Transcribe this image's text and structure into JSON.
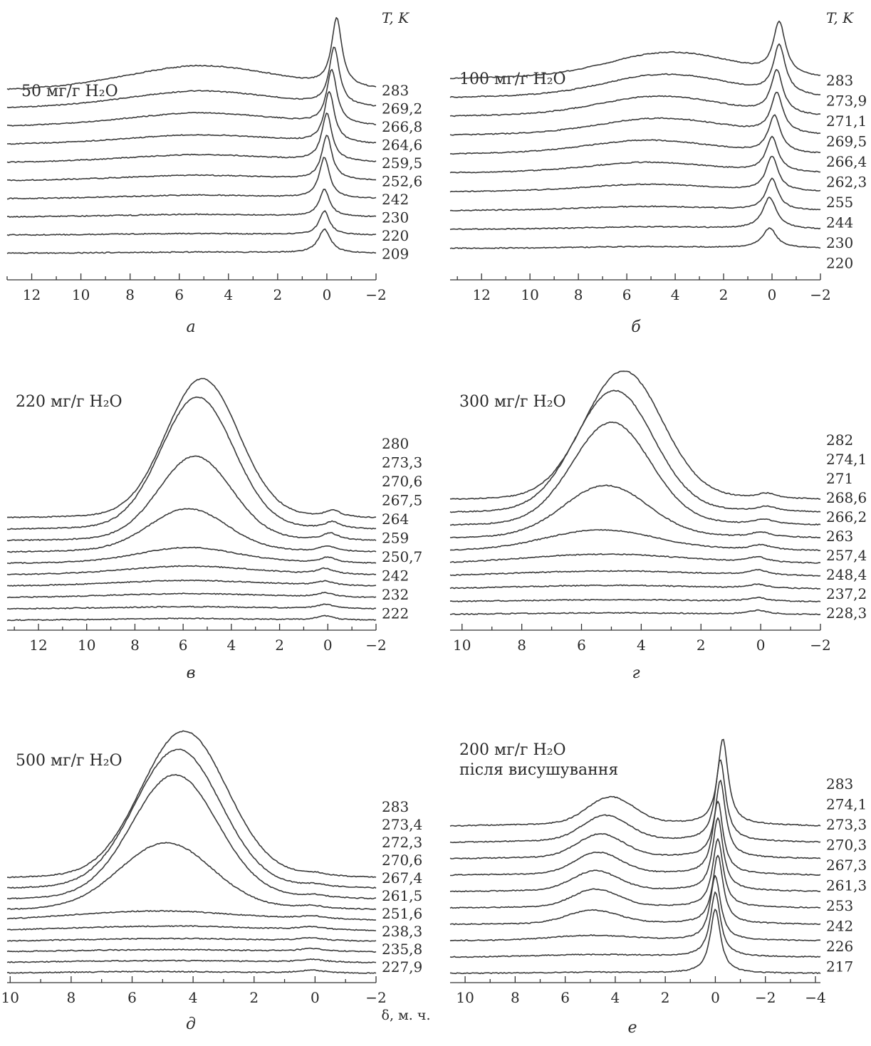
{
  "figure": {
    "x_axis_label": "δ, м. ч."
  },
  "chart_data": [
    {
      "type": "line",
      "panel_label": "а",
      "title": "50 мг/г H₂O",
      "subtitle": "",
      "legend_title": "T, K",
      "xlim": [
        13,
        -2
      ],
      "xticks": [
        "12",
        "10",
        "8",
        "6",
        "4",
        "2",
        "0",
        "−2"
      ],
      "tick_values": [
        12,
        10,
        8,
        6,
        4,
        2,
        0,
        -2
      ],
      "series": [
        {
          "name": "283",
          "broad": {
            "center": 5.0,
            "height": 0.3,
            "width": 3.0
          },
          "narrow": {
            "center": -0.4,
            "height": 1.0,
            "width": 0.25
          }
        },
        {
          "name": "269,2",
          "broad": {
            "center": 5.0,
            "height": 0.2,
            "width": 3.0
          },
          "narrow": {
            "center": -0.3,
            "height": 0.85,
            "width": 0.25
          }
        },
        {
          "name": "266,8",
          "broad": {
            "center": 5.0,
            "height": 0.15,
            "width": 3.0
          },
          "narrow": {
            "center": -0.2,
            "height": 0.8,
            "width": 0.25
          }
        },
        {
          "name": "264,6",
          "broad": {
            "center": 5.0,
            "height": 0.1,
            "width": 3.0
          },
          "narrow": {
            "center": -0.1,
            "height": 0.75,
            "width": 0.25
          }
        },
        {
          "name": "259,5",
          "broad": {
            "center": 5.0,
            "height": 0.08,
            "width": 3.0
          },
          "narrow": {
            "center": 0.0,
            "height": 0.7,
            "width": 0.25
          }
        },
        {
          "name": "252,6",
          "broad": {
            "center": 5.0,
            "height": 0.05,
            "width": 3.0
          },
          "narrow": {
            "center": 0.0,
            "height": 0.65,
            "width": 0.25
          }
        },
        {
          "name": "242",
          "broad": {
            "center": 5.0,
            "height": 0.03,
            "width": 3.0
          },
          "narrow": {
            "center": 0.1,
            "height": 0.6,
            "width": 0.25
          }
        },
        {
          "name": "230",
          "broad": {
            "center": 5.0,
            "height": 0.02,
            "width": 3.0
          },
          "narrow": {
            "center": 0.1,
            "height": 0.4,
            "width": 0.25
          }
        },
        {
          "name": "220",
          "broad": {
            "center": 5.0,
            "height": 0.01,
            "width": 3.0
          },
          "narrow": {
            "center": 0.1,
            "height": 0.35,
            "width": 0.25
          }
        },
        {
          "name": "209",
          "broad": {
            "center": 5.0,
            "height": 0.01,
            "width": 3.0
          },
          "narrow": {
            "center": 0.1,
            "height": 0.35,
            "width": 0.3
          }
        }
      ]
    },
    {
      "type": "line",
      "panel_label": "б",
      "title": "100 мг/г H₂O",
      "subtitle": "",
      "legend_title": "T, K",
      "xlim": [
        13.3,
        -2
      ],
      "xticks": [
        "12",
        "10",
        "8",
        "6",
        "4",
        "2",
        "0",
        "−2"
      ],
      "tick_values": [
        12,
        10,
        8,
        6,
        4,
        2,
        0,
        -2
      ],
      "series": [
        {
          "name": "283",
          "broad": {
            "center": 4.0,
            "height": 0.4,
            "width": 2.5
          },
          "narrow": {
            "center": -0.3,
            "height": 0.9,
            "width": 0.3
          }
        },
        {
          "name": "273,9",
          "broad": {
            "center": 4.2,
            "height": 0.35,
            "width": 2.5
          },
          "narrow": {
            "center": -0.3,
            "height": 0.85,
            "width": 0.3
          }
        },
        {
          "name": "271,1",
          "broad": {
            "center": 4.5,
            "height": 0.3,
            "width": 2.5
          },
          "narrow": {
            "center": -0.2,
            "height": 0.75,
            "width": 0.3
          }
        },
        {
          "name": "269,5",
          "broad": {
            "center": 4.5,
            "height": 0.25,
            "width": 2.5
          },
          "narrow": {
            "center": -0.2,
            "height": 0.7,
            "width": 0.3
          }
        },
        {
          "name": "266,4",
          "broad": {
            "center": 5.0,
            "height": 0.2,
            "width": 2.5
          },
          "narrow": {
            "center": -0.1,
            "height": 0.65,
            "width": 0.3
          }
        },
        {
          "name": "262,3",
          "broad": {
            "center": 5.0,
            "height": 0.15,
            "width": 2.5
          },
          "narrow": {
            "center": 0.0,
            "height": 0.6,
            "width": 0.3
          }
        },
        {
          "name": "255",
          "broad": {
            "center": 5.0,
            "height": 0.1,
            "width": 2.5
          },
          "narrow": {
            "center": 0.0,
            "height": 0.6,
            "width": 0.3
          }
        },
        {
          "name": "244",
          "broad": {
            "center": 5.0,
            "height": 0.05,
            "width": 2.5
          },
          "narrow": {
            "center": 0.0,
            "height": 0.55,
            "width": 0.3
          }
        },
        {
          "name": "230",
          "broad": {
            "center": 5.0,
            "height": 0.03,
            "width": 2.5
          },
          "narrow": {
            "center": 0.1,
            "height": 0.55,
            "width": 0.35
          }
        },
        {
          "name": "220",
          "broad": {
            "center": 5.0,
            "height": 0.02,
            "width": 2.5
          },
          "narrow": {
            "center": 0.1,
            "height": 0.35,
            "width": 0.35
          }
        }
      ]
    },
    {
      "type": "line",
      "panel_label": "в",
      "title": "220 мг/г H₂O",
      "subtitle": "",
      "legend_title": "",
      "xlim": [
        13.3,
        -2
      ],
      "xticks": [
        "12",
        "10",
        "8",
        "6",
        "4",
        "2",
        "0",
        "−2"
      ],
      "tick_values": [
        12,
        10,
        8,
        6,
        4,
        2,
        0,
        -2
      ],
      "series": [
        {
          "name": "280",
          "broad": {
            "center": 5.2,
            "height": 1.0,
            "width": 1.5
          },
          "narrow": {
            "center": -0.2,
            "height": 0.05,
            "width": 0.4
          }
        },
        {
          "name": "273,3",
          "broad": {
            "center": 5.4,
            "height": 0.95,
            "width": 1.5
          },
          "narrow": {
            "center": -0.2,
            "height": 0.05,
            "width": 0.4
          }
        },
        {
          "name": "270,6",
          "broad": {
            "center": 5.5,
            "height": 0.6,
            "width": 1.5
          },
          "narrow": {
            "center": -0.1,
            "height": 0.05,
            "width": 0.4
          }
        },
        {
          "name": "267,5",
          "broad": {
            "center": 5.8,
            "height": 0.3,
            "width": 1.6
          },
          "narrow": {
            "center": 0.0,
            "height": 0.04,
            "width": 0.4
          }
        },
        {
          "name": "264",
          "broad": {
            "center": 5.8,
            "height": 0.1,
            "width": 2.0
          },
          "narrow": {
            "center": 0.0,
            "height": 0.04,
            "width": 0.4
          }
        },
        {
          "name": "259",
          "broad": {
            "center": 5.8,
            "height": 0.05,
            "width": 2.5
          },
          "narrow": {
            "center": 0.1,
            "height": 0.04,
            "width": 0.4
          }
        },
        {
          "name": "250,7",
          "broad": {
            "center": 5.8,
            "height": 0.03,
            "width": 3.0
          },
          "narrow": {
            "center": 0.1,
            "height": 0.03,
            "width": 0.4
          }
        },
        {
          "name": "242",
          "broad": {
            "center": 5.8,
            "height": 0.02,
            "width": 3.0
          },
          "narrow": {
            "center": 0.1,
            "height": 0.03,
            "width": 0.4
          }
        },
        {
          "name": "232",
          "broad": {
            "center": 5.8,
            "height": 0.01,
            "width": 3.0
          },
          "narrow": {
            "center": 0.1,
            "height": 0.03,
            "width": 0.4
          }
        },
        {
          "name": "222",
          "broad": {
            "center": 5.8,
            "height": 0.01,
            "width": 3.0
          },
          "narrow": {
            "center": 0.1,
            "height": 0.03,
            "width": 0.4
          }
        }
      ]
    },
    {
      "type": "line",
      "panel_label": "г",
      "title": "300 мг/г H₂O",
      "subtitle": "",
      "legend_title": "",
      "xlim": [
        10.4,
        -2
      ],
      "xticks": [
        "10",
        "8",
        "6",
        "4",
        "2",
        "0",
        "−2"
      ],
      "tick_values": [
        10,
        8,
        6,
        4,
        2,
        0,
        -2
      ],
      "series": [
        {
          "name": "282",
          "broad": {
            "center": 4.6,
            "height": 1.0,
            "width": 1.3
          },
          "narrow": {
            "center": -0.2,
            "height": 0.04,
            "width": 0.4
          }
        },
        {
          "name": "274,1",
          "broad": {
            "center": 4.9,
            "height": 0.95,
            "width": 1.3
          },
          "narrow": {
            "center": -0.2,
            "height": 0.04,
            "width": 0.4
          }
        },
        {
          "name": "271",
          "broad": {
            "center": 5.0,
            "height": 0.8,
            "width": 1.3
          },
          "narrow": {
            "center": -0.1,
            "height": 0.04,
            "width": 0.4
          }
        },
        {
          "name": "268,6",
          "broad": {
            "center": 5.2,
            "height": 0.4,
            "width": 1.4
          },
          "narrow": {
            "center": 0.0,
            "height": 0.04,
            "width": 0.4
          }
        },
        {
          "name": "266,2",
          "broad": {
            "center": 5.4,
            "height": 0.15,
            "width": 1.8
          },
          "narrow": {
            "center": 0.0,
            "height": 0.04,
            "width": 0.4
          }
        },
        {
          "name": "263",
          "broad": {
            "center": 5.4,
            "height": 0.06,
            "width": 2.5
          },
          "narrow": {
            "center": 0.1,
            "height": 0.04,
            "width": 0.4
          }
        },
        {
          "name": "257,4",
          "broad": {
            "center": 5.4,
            "height": 0.03,
            "width": 3.0
          },
          "narrow": {
            "center": 0.1,
            "height": 0.04,
            "width": 0.4
          }
        },
        {
          "name": "248,4",
          "broad": {
            "center": 5.4,
            "height": 0.02,
            "width": 3.0
          },
          "narrow": {
            "center": 0.1,
            "height": 0.03,
            "width": 0.4
          }
        },
        {
          "name": "237,2",
          "broad": {
            "center": 5.4,
            "height": 0.01,
            "width": 3.0
          },
          "narrow": {
            "center": 0.1,
            "height": 0.03,
            "width": 0.4
          }
        },
        {
          "name": "228,3",
          "broad": {
            "center": 5.4,
            "height": 0.01,
            "width": 3.0
          },
          "narrow": {
            "center": 0.1,
            "height": 0.03,
            "width": 0.4
          }
        }
      ]
    },
    {
      "type": "line",
      "panel_label": "д",
      "title": "500 мг/г H₂O",
      "subtitle": "",
      "legend_title": "",
      "xlim": [
        10.1,
        -2
      ],
      "xticks": [
        "10",
        "8",
        "6",
        "4",
        "2",
        "0",
        "−2"
      ],
      "tick_values": [
        10,
        8,
        6,
        4,
        2,
        0,
        -2
      ],
      "series": [
        {
          "name": "283",
          "broad": {
            "center": 4.3,
            "height": 1.0,
            "width": 1.4
          },
          "narrow": {
            "center": 0.0,
            "height": 0.02,
            "width": 0.5
          }
        },
        {
          "name": "273,4",
          "broad": {
            "center": 4.5,
            "height": 0.95,
            "width": 1.4
          },
          "narrow": {
            "center": 0.0,
            "height": 0.02,
            "width": 0.5
          }
        },
        {
          "name": "272,3",
          "broad": {
            "center": 4.6,
            "height": 0.85,
            "width": 1.4
          },
          "narrow": {
            "center": 0.0,
            "height": 0.02,
            "width": 0.5
          }
        },
        {
          "name": "270,6",
          "broad": {
            "center": 4.9,
            "height": 0.45,
            "width": 1.5
          },
          "narrow": {
            "center": 0.1,
            "height": 0.02,
            "width": 0.5
          }
        },
        {
          "name": "267,4",
          "broad": {
            "center": 5.5,
            "height": 0.05,
            "width": 2.5
          },
          "narrow": {
            "center": 0.1,
            "height": 0.02,
            "width": 0.5
          }
        },
        {
          "name": "261,5",
          "broad": {
            "center": 5.5,
            "height": 0.02,
            "width": 3.0
          },
          "narrow": {
            "center": 0.1,
            "height": 0.02,
            "width": 0.5
          }
        },
        {
          "name": "251,6",
          "broad": {
            "center": 5.5,
            "height": 0.01,
            "width": 3.0
          },
          "narrow": {
            "center": 0.1,
            "height": 0.02,
            "width": 0.5
          }
        },
        {
          "name": "238,3",
          "broad": {
            "center": 5.5,
            "height": 0.01,
            "width": 3.0
          },
          "narrow": {
            "center": 0.1,
            "height": 0.02,
            "width": 0.5
          }
        },
        {
          "name": "235,8",
          "broad": {
            "center": 5.5,
            "height": 0.01,
            "width": 3.0
          },
          "narrow": {
            "center": 0.1,
            "height": 0.02,
            "width": 0.5
          }
        },
        {
          "name": "227,9",
          "broad": {
            "center": 5.5,
            "height": 0.01,
            "width": 3.0
          },
          "narrow": {
            "center": 0.1,
            "height": 0.02,
            "width": 0.5
          }
        }
      ]
    },
    {
      "type": "line",
      "panel_label": "е",
      "title": "200 мг/г H₂O",
      "subtitle": "після висушування",
      "legend_title": "",
      "xlim": [
        10.6,
        -4.2
      ],
      "xticks": [
        "10",
        "8",
        "6",
        "4",
        "2",
        "0",
        "−2",
        "−4"
      ],
      "tick_values": [
        10,
        8,
        6,
        4,
        2,
        0,
        -2,
        -4
      ],
      "series": [
        {
          "name": "283",
          "broad": {
            "center": 4.2,
            "height": 0.3,
            "width": 0.9
          },
          "narrow": {
            "center": -0.3,
            "height": 1.0,
            "width": 0.25
          }
        },
        {
          "name": "274,1",
          "broad": {
            "center": 4.4,
            "height": 0.28,
            "width": 0.9
          },
          "narrow": {
            "center": -0.2,
            "height": 0.95,
            "width": 0.25
          }
        },
        {
          "name": "273,3",
          "broad": {
            "center": 4.6,
            "height": 0.26,
            "width": 0.9
          },
          "narrow": {
            "center": -0.2,
            "height": 0.9,
            "width": 0.25
          }
        },
        {
          "name": "270,3",
          "broad": {
            "center": 4.7,
            "height": 0.24,
            "width": 0.9
          },
          "narrow": {
            "center": -0.1,
            "height": 0.85,
            "width": 0.25
          }
        },
        {
          "name": "267,3",
          "broad": {
            "center": 4.8,
            "height": 0.22,
            "width": 0.9
          },
          "narrow": {
            "center": -0.1,
            "height": 0.85,
            "width": 0.25
          }
        },
        {
          "name": "261,3",
          "broad": {
            "center": 4.8,
            "height": 0.2,
            "width": 0.9
          },
          "narrow": {
            "center": -0.1,
            "height": 0.8,
            "width": 0.25
          }
        },
        {
          "name": "253",
          "broad": {
            "center": 4.9,
            "height": 0.15,
            "width": 1.0
          },
          "narrow": {
            "center": -0.1,
            "height": 0.8,
            "width": 0.25
          }
        },
        {
          "name": "242",
          "broad": {
            "center": 5.0,
            "height": 0.05,
            "width": 1.5
          },
          "narrow": {
            "center": 0.0,
            "height": 0.75,
            "width": 0.25
          }
        },
        {
          "name": "226",
          "broad": {
            "center": 5.0,
            "height": 0.02,
            "width": 2.0
          },
          "narrow": {
            "center": 0.0,
            "height": 0.75,
            "width": 0.25
          }
        },
        {
          "name": "217",
          "broad": {
            "center": 5.0,
            "height": 0.01,
            "width": 2.0
          },
          "narrow": {
            "center": 0.0,
            "height": 0.75,
            "width": 0.25
          }
        }
      ]
    }
  ]
}
